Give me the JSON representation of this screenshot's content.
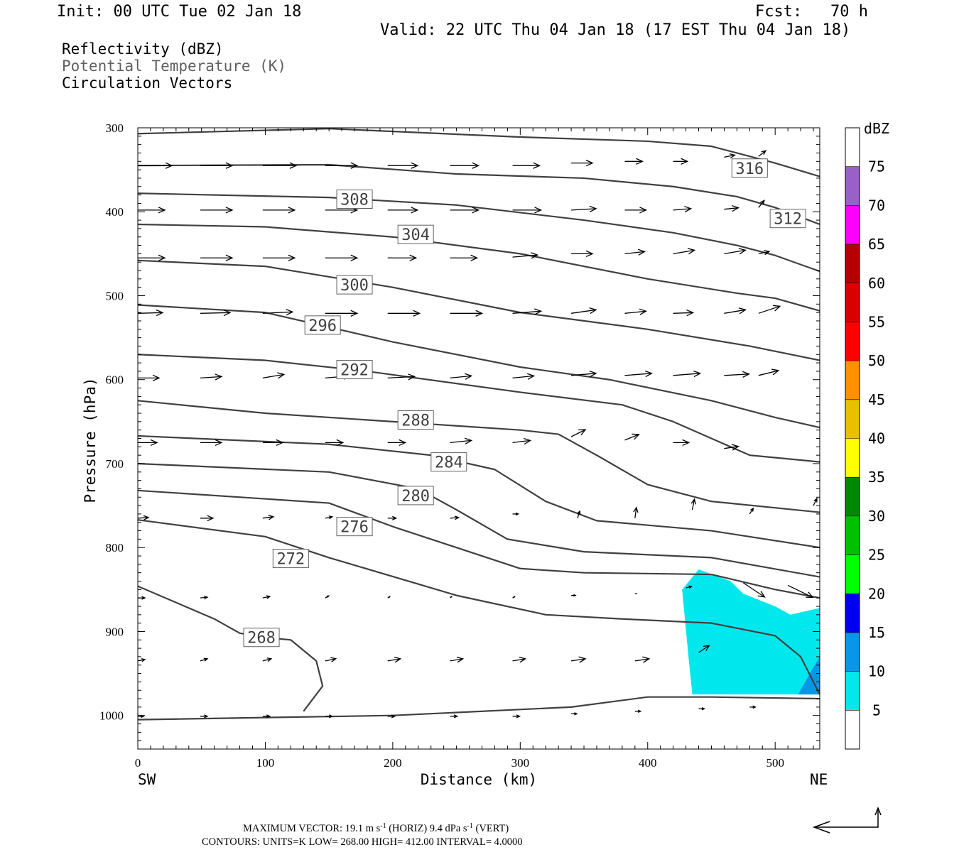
{
  "header": {
    "init": "Init: 00 UTC Tue 02 Jan 18",
    "fcst": "Fcst:   70 h",
    "valid": "Valid: 22 UTC Thu 04 Jan 18 (17 EST Thu 04 Jan 18)"
  },
  "legend_fields": [
    "Reflectivity (dBZ)",
    "Potential Temperature (K)",
    "Circulation Vectors"
  ],
  "colors": {
    "reflectivity_5": "#00e8ee",
    "reflectivity_10": "#0a96e6",
    "contour": "#404040",
    "vector": "#000000",
    "legend_gray": "#606060"
  },
  "footer": {
    "max_vector_label": "MAXIMUM VECTOR:",
    "horiz": "19.1 m s",
    "horiz_sup": "-1",
    "horiz_tag": "(HORIZ)",
    "vert": "9.4 dPa s",
    "vert_sup": "-1",
    "vert_tag": "(VERT)",
    "contours": "CONTOURS:  UNITS=K  LOW=   268.00       HIGH=  412.00       INTERVAL=     4.0000"
  },
  "chart_data": {
    "type": "cross-section",
    "xlabel": "Distance (km)",
    "ylabel": "Pressure (hPa)",
    "x_ticks": [
      0,
      100,
      200,
      300,
      400,
      500
    ],
    "y_ticks": [
      300,
      400,
      500,
      600,
      700,
      800,
      900,
      1000
    ],
    "xlim": [
      0,
      535
    ],
    "ylim": [
      1040,
      300
    ],
    "x_start_label": "SW",
    "x_end_label": "NE",
    "colorbar": {
      "unit": "dBZ",
      "levels": [
        "5",
        "10",
        "15",
        "20",
        "25",
        "30",
        "35",
        "40",
        "45",
        "50",
        "55",
        "60",
        "65",
        "70",
        "75"
      ],
      "colors": [
        "#ffffff",
        "#00e8ee",
        "#0a96e6",
        "#0000f0",
        "#00ff00",
        "#00c000",
        "#008800",
        "#ffff00",
        "#e8c000",
        "#ff9000",
        "#ff0000",
        "#d80000",
        "#b40000",
        "#ff00ff",
        "#9860c8",
        "#ffffff"
      ]
    },
    "reflectivity_areas": [
      {
        "dbz": 5,
        "points": [
          [
            427,
            850
          ],
          [
            440,
            826
          ],
          [
            465,
            840
          ],
          [
            475,
            855
          ],
          [
            500,
            870
          ],
          [
            512,
            880
          ],
          [
            535,
            872
          ],
          [
            535,
            975
          ],
          [
            435,
            975
          ],
          [
            432,
            930
          ]
        ]
      },
      {
        "dbz": 10,
        "points": [
          [
            518,
            975
          ],
          [
            528,
            948
          ],
          [
            535,
            930
          ],
          [
            535,
            975
          ]
        ]
      }
    ],
    "isentropes": [
      {
        "value": 316,
        "label": "316",
        "label_at": [
          480,
          348
        ],
        "points": [
          [
            0,
            307
          ],
          [
            150,
            301
          ],
          [
            300,
            311
          ],
          [
            400,
            316
          ],
          [
            450,
            322
          ],
          [
            480,
            334
          ],
          [
            500,
            342
          ],
          [
            535,
            358
          ]
        ]
      },
      {
        "value": 312,
        "label": "312",
        "label_at": [
          510,
          408
        ],
        "points": [
          [
            0,
            345
          ],
          [
            150,
            344
          ],
          [
            250,
            355
          ],
          [
            350,
            360
          ],
          [
            420,
            370
          ],
          [
            470,
            382
          ],
          [
            500,
            395
          ],
          [
            535,
            415
          ]
        ]
      },
      {
        "value": 308,
        "label": "308",
        "label_at": [
          170,
          385
        ],
        "points": [
          [
            0,
            378
          ],
          [
            150,
            383
          ],
          [
            250,
            392
          ],
          [
            350,
            410
          ],
          [
            420,
            425
          ],
          [
            470,
            440
          ],
          [
            500,
            452
          ],
          [
            535,
            471
          ]
        ]
      },
      {
        "value": 304,
        "label": "304",
        "label_at": [
          218,
          427
        ],
        "points": [
          [
            0,
            415
          ],
          [
            100,
            418
          ],
          [
            200,
            430
          ],
          [
            300,
            450
          ],
          [
            400,
            480
          ],
          [
            470,
            497
          ],
          [
            500,
            503
          ],
          [
            535,
            518
          ]
        ]
      },
      {
        "value": 300,
        "label": "300",
        "label_at": [
          170,
          487
        ],
        "points": [
          [
            0,
            458
          ],
          [
            100,
            465
          ],
          [
            200,
            490
          ],
          [
            300,
            520
          ],
          [
            400,
            540
          ],
          [
            480,
            560
          ],
          [
            535,
            577
          ]
        ]
      },
      {
        "value": 296,
        "label": "296",
        "label_at": [
          145,
          535
        ],
        "points": [
          [
            0,
            511
          ],
          [
            100,
            520
          ],
          [
            200,
            555
          ],
          [
            300,
            585
          ],
          [
            370,
            600
          ],
          [
            450,
            625
          ],
          [
            500,
            645
          ],
          [
            535,
            657
          ]
        ]
      },
      {
        "value": 292,
        "label": "292",
        "label_at": [
          170,
          588
        ],
        "points": [
          [
            0,
            570
          ],
          [
            100,
            577
          ],
          [
            180,
            590
          ],
          [
            300,
            615
          ],
          [
            380,
            630
          ],
          [
            420,
            650
          ],
          [
            480,
            690
          ],
          [
            535,
            698
          ]
        ]
      },
      {
        "value": 288,
        "label": "288",
        "label_at": [
          218,
          648
        ],
        "points": [
          [
            0,
            625
          ],
          [
            100,
            640
          ],
          [
            200,
            650
          ],
          [
            300,
            660
          ],
          [
            330,
            665
          ],
          [
            360,
            690
          ],
          [
            400,
            725
          ],
          [
            450,
            745
          ],
          [
            535,
            758
          ]
        ]
      },
      {
        "value": 284,
        "label": "284",
        "label_at": [
          244,
          698
        ],
        "points": [
          [
            0,
            667
          ],
          [
            150,
            677
          ],
          [
            230,
            690
          ],
          [
            280,
            707
          ],
          [
            320,
            745
          ],
          [
            360,
            768
          ],
          [
            450,
            780
          ],
          [
            535,
            800
          ]
        ]
      },
      {
        "value": 280,
        "label": "280",
        "label_at": [
          218,
          738
        ],
        "points": [
          [
            0,
            700
          ],
          [
            150,
            710
          ],
          [
            220,
            730
          ],
          [
            250,
            755
          ],
          [
            290,
            790
          ],
          [
            350,
            805
          ],
          [
            450,
            812
          ],
          [
            535,
            835
          ]
        ]
      },
      {
        "value": 276,
        "label": "276",
        "label_at": [
          170,
          775
        ],
        "points": [
          [
            0,
            732
          ],
          [
            150,
            747
          ],
          [
            200,
            775
          ],
          [
            250,
            800
          ],
          [
            300,
            825
          ],
          [
            350,
            830
          ],
          [
            450,
            832
          ],
          [
            500,
            850
          ],
          [
            535,
            860
          ]
        ]
      },
      {
        "value": 272,
        "label": "272",
        "label_at": [
          120,
          813
        ],
        "points": [
          [
            0,
            767
          ],
          [
            100,
            787
          ],
          [
            150,
            812
          ],
          [
            250,
            857
          ],
          [
            320,
            880
          ],
          [
            380,
            885
          ],
          [
            450,
            890
          ],
          [
            500,
            905
          ],
          [
            520,
            930
          ],
          [
            535,
            975
          ]
        ]
      },
      {
        "value": 268,
        "label": "268",
        "label_at": [
          97,
          907
        ],
        "points": [
          [
            0,
            846
          ],
          [
            60,
            885
          ],
          [
            80,
            902
          ],
          [
            100,
            907
          ],
          [
            120,
            910
          ],
          [
            140,
            935
          ],
          [
            145,
            965
          ],
          [
            130,
            995
          ]
        ]
      },
      {
        "value": 268,
        "label": "",
        "label_at": null,
        "points": [
          [
            0,
            1005
          ],
          [
            200,
            1000
          ],
          [
            340,
            990
          ],
          [
            400,
            978
          ],
          [
            450,
            978
          ],
          [
            535,
            980
          ]
        ]
      }
    ],
    "circulation_vectors": [
      [
        0,
        345,
        48,
        0
      ],
      [
        49,
        345,
        45,
        0
      ],
      [
        98,
        345,
        47,
        0
      ],
      [
        147,
        345,
        45,
        0
      ],
      [
        196,
        345,
        42,
        0
      ],
      [
        245,
        345,
        40,
        0
      ],
      [
        294,
        345,
        38,
        0
      ],
      [
        340,
        342,
        30,
        0
      ],
      [
        382,
        340,
        25,
        0
      ],
      [
        420,
        340,
        20,
        0
      ],
      [
        460,
        335,
        15,
        -3
      ],
      [
        487,
        334,
        10,
        -8
      ],
      [
        0,
        398,
        38,
        0
      ],
      [
        49,
        398,
        45,
        0
      ],
      [
        98,
        398,
        45,
        0
      ],
      [
        147,
        398,
        45,
        0
      ],
      [
        196,
        398,
        42,
        0
      ],
      [
        245,
        398,
        40,
        0
      ],
      [
        294,
        398,
        40,
        0
      ],
      [
        340,
        398,
        35,
        -2
      ],
      [
        382,
        398,
        30,
        0
      ],
      [
        420,
        398,
        25,
        -2
      ],
      [
        460,
        397,
        20,
        -2
      ],
      [
        487,
        395,
        8,
        -10
      ],
      [
        0,
        455,
        38,
        0
      ],
      [
        49,
        455,
        45,
        0
      ],
      [
        98,
        455,
        45,
        0
      ],
      [
        147,
        455,
        45,
        0
      ],
      [
        196,
        455,
        40,
        0
      ],
      [
        245,
        455,
        38,
        0
      ],
      [
        294,
        454,
        35,
        -3
      ],
      [
        340,
        450,
        30,
        0
      ],
      [
        382,
        450,
        28,
        -3
      ],
      [
        420,
        450,
        30,
        -5
      ],
      [
        460,
        450,
        30,
        -5
      ],
      [
        487,
        450,
        15,
        -3
      ],
      [
        0,
        521,
        35,
        -1
      ],
      [
        49,
        521,
        42,
        -1
      ],
      [
        98,
        521,
        42,
        -2
      ],
      [
        147,
        521,
        45,
        0
      ],
      [
        196,
        521,
        45,
        0
      ],
      [
        245,
        521,
        45,
        0
      ],
      [
        294,
        521,
        40,
        -3
      ],
      [
        340,
        521,
        35,
        -5
      ],
      [
        382,
        521,
        30,
        -3
      ],
      [
        420,
        521,
        28,
        -1
      ],
      [
        460,
        521,
        30,
        -5
      ],
      [
        487,
        521,
        30,
        -10
      ],
      [
        0,
        598,
        30,
        0
      ],
      [
        49,
        598,
        30,
        -2
      ],
      [
        98,
        598,
        30,
        -5
      ],
      [
        147,
        598,
        35,
        -3
      ],
      [
        196,
        598,
        38,
        -2
      ],
      [
        245,
        598,
        30,
        -3
      ],
      [
        294,
        598,
        30,
        -3
      ],
      [
        340,
        595,
        35,
        -3
      ],
      [
        382,
        595,
        38,
        -3
      ],
      [
        420,
        595,
        38,
        -3
      ],
      [
        460,
        595,
        35,
        -2
      ],
      [
        487,
        595,
        28,
        -7
      ],
      [
        0,
        675,
        27,
        0
      ],
      [
        49,
        675,
        30,
        0
      ],
      [
        98,
        675,
        28,
        0
      ],
      [
        147,
        675,
        25,
        0
      ],
      [
        196,
        675,
        25,
        0
      ],
      [
        245,
        675,
        30,
        -3
      ],
      [
        294,
        675,
        25,
        -3
      ],
      [
        340,
        668,
        20,
        -10
      ],
      [
        382,
        672,
        20,
        -8
      ],
      [
        420,
        675,
        22,
        0
      ],
      [
        460,
        682,
        20,
        -3
      ],
      [
        0,
        765,
        15,
        -1
      ],
      [
        49,
        765,
        18,
        0
      ],
      [
        98,
        765,
        15,
        -2
      ],
      [
        147,
        765,
        10,
        -2
      ],
      [
        196,
        765,
        12,
        0
      ],
      [
        245,
        765,
        12,
        -1
      ],
      [
        294,
        760,
        8,
        0
      ],
      [
        345,
        765,
        3,
        -10
      ],
      [
        390,
        765,
        2,
        -15
      ],
      [
        435,
        755,
        3,
        -15
      ],
      [
        480,
        760,
        5,
        -8
      ],
      [
        530,
        750,
        5,
        -10
      ],
      [
        0,
        860,
        10,
        0
      ],
      [
        49,
        860,
        10,
        -1
      ],
      [
        98,
        860,
        10,
        -2
      ],
      [
        147,
        860,
        5,
        -3
      ],
      [
        196,
        860,
        3,
        -2
      ],
      [
        245,
        860,
        2,
        -2
      ],
      [
        294,
        860,
        3,
        -2
      ],
      [
        340,
        857,
        6,
        0
      ],
      [
        390,
        855,
        2,
        0
      ],
      [
        430,
        848,
        8,
        -2
      ],
      [
        475,
        842,
        30,
        20
      ],
      [
        510,
        845,
        35,
        17
      ],
      [
        0,
        935,
        10,
        -2
      ],
      [
        49,
        935,
        10,
        -3
      ],
      [
        98,
        935,
        12,
        -3
      ],
      [
        147,
        935,
        15,
        -3
      ],
      [
        196,
        935,
        18,
        -3
      ],
      [
        245,
        935,
        18,
        -3
      ],
      [
        294,
        935,
        18,
        -3
      ],
      [
        340,
        935,
        20,
        -3
      ],
      [
        390,
        935,
        20,
        -3
      ],
      [
        440,
        925,
        15,
        -10
      ],
      [
        0,
        1001,
        8,
        0
      ],
      [
        49,
        1001,
        10,
        0
      ],
      [
        98,
        1001,
        10,
        0
      ],
      [
        147,
        1001,
        10,
        0
      ],
      [
        196,
        1001,
        10,
        0
      ],
      [
        245,
        1001,
        10,
        0
      ],
      [
        294,
        1001,
        10,
        0
      ],
      [
        340,
        998,
        8,
        0
      ],
      [
        390,
        995,
        8,
        0
      ],
      [
        440,
        992,
        8,
        0
      ],
      [
        480,
        990,
        8,
        0
      ]
    ]
  }
}
